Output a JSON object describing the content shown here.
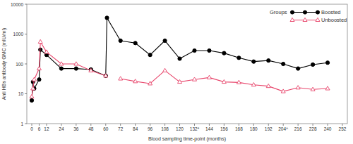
{
  "chart_data": {
    "type": "line",
    "x_label": "Blood sampling time-point (months)",
    "y_label": "Anti HBs antibody GMC (mIU/ml)",
    "legend_title": "Groups",
    "legend": "top-right",
    "log": "y",
    "grid": false,
    "xlim": [
      -4,
      256
    ],
    "ylim": [
      1,
      10000
    ],
    "xticks": [
      0,
      6,
      12,
      24,
      36,
      48,
      60,
      72,
      84,
      96,
      108,
      120,
      {
        "value": 132,
        "label": "132*"
      },
      144,
      156,
      168,
      180,
      192,
      {
        "value": 204,
        "label": "204^"
      },
      216,
      228,
      240,
      252
    ],
    "yticks": [
      1,
      10,
      100,
      1000,
      10000
    ],
    "x": [
      0,
      1,
      2,
      6,
      7,
      12,
      24,
      36,
      48,
      60,
      61,
      72,
      84,
      96,
      108,
      120,
      132,
      144,
      156,
      168,
      180,
      192,
      204,
      216,
      228,
      240
    ],
    "series": [
      {
        "name": "Boosted",
        "color": "#000000",
        "marker": "circle",
        "line_style": "solid",
        "values": [
          6,
          25,
          15,
          30,
          300,
          200,
          70,
          70,
          65,
          40,
          3500,
          600,
          500,
          200,
          600,
          150,
          280,
          280,
          230,
          160,
          120,
          130,
          100,
          70,
          95,
          110
        ]
      },
      {
        "name": "Unboosted",
        "color": "#e8456b",
        "marker": "triangle",
        "line_style": "solid",
        "values": [
          8,
          15,
          30,
          70,
          550,
          250,
          100,
          100,
          60,
          40,
          null,
          32,
          26,
          22,
          60,
          25,
          30,
          35,
          25,
          24,
          20,
          18,
          12,
          16,
          14,
          15
        ]
      }
    ]
  }
}
